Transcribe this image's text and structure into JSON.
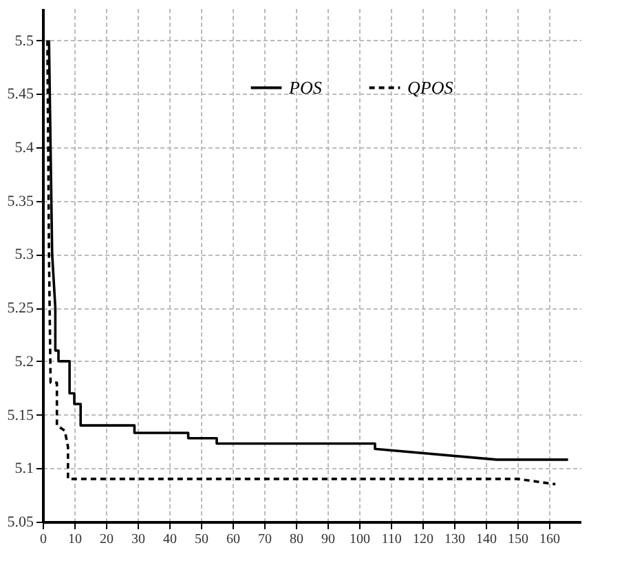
{
  "chart_data": {
    "type": "line",
    "series": [
      {
        "name": "POS",
        "color": "#000000",
        "line_style": "solid",
        "x": [
          2,
          2.5,
          3,
          4,
          4,
          5,
          5,
          8.5,
          8.5,
          10,
          10,
          12,
          12,
          29,
          29,
          46,
          46,
          55,
          55,
          105,
          105,
          143.5,
          166
        ],
        "values": [
          5.5,
          5.4,
          5.3,
          5.25,
          5.21,
          5.21,
          5.2,
          5.2,
          5.17,
          5.17,
          5.16,
          5.16,
          5.14,
          5.14,
          5.133,
          5.133,
          5.128,
          5.128,
          5.123,
          5.123,
          5.118,
          5.108,
          5.108
        ]
      },
      {
        "name": "QPOS",
        "color": "#000000",
        "line_style": "dashed",
        "x": [
          1.5,
          2,
          2.5,
          4.5,
          4.5,
          7,
          8,
          8,
          150,
          162
        ],
        "values": [
          5.5,
          5.3,
          5.18,
          5.18,
          5.14,
          5.135,
          5.12,
          5.09,
          5.09,
          5.085
        ]
      }
    ],
    "xlim": [
      0,
      170
    ],
    "xticks": [
      0,
      10,
      20,
      30,
      40,
      50,
      60,
      70,
      80,
      90,
      100,
      110,
      120,
      130,
      140,
      150,
      160
    ],
    "ylim": [
      5.05,
      5.53
    ],
    "yticks": [
      5.05,
      5.1,
      5.15,
      5.2,
      5.25,
      5.3,
      5.35,
      5.4,
      5.45,
      5.5
    ],
    "grid": true,
    "legend": "top"
  }
}
